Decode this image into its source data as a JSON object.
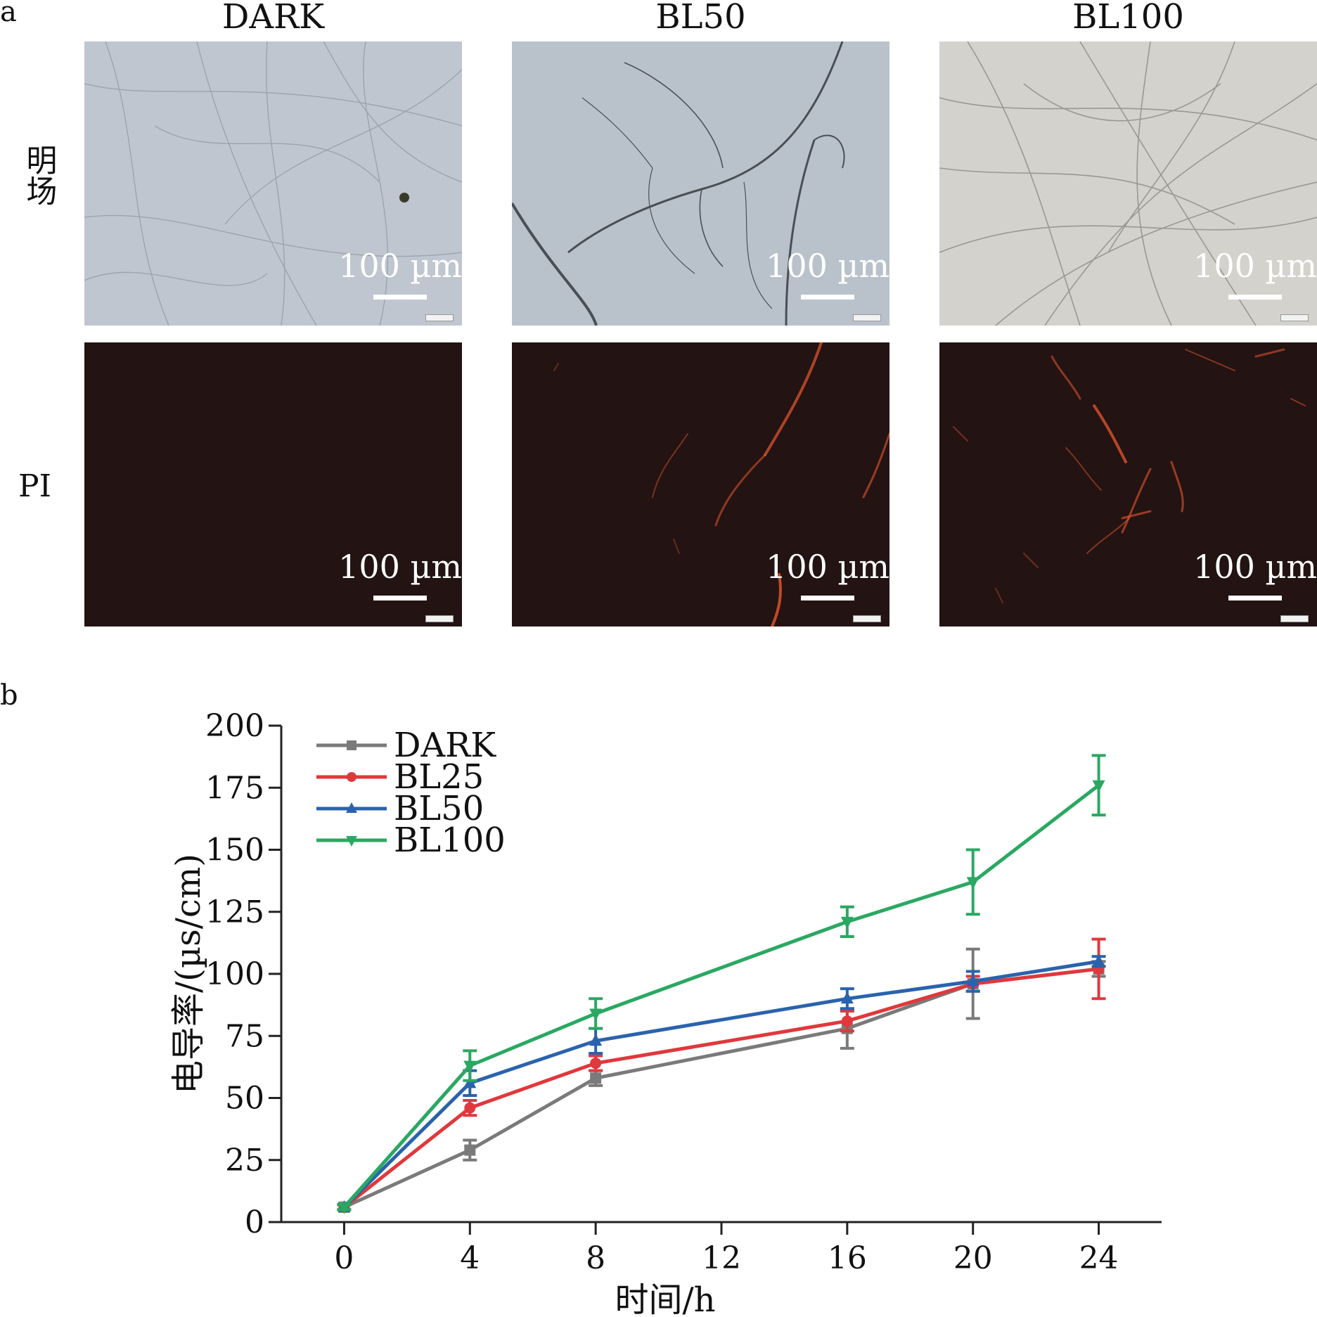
{
  "panel_a": {
    "letter": "a",
    "columns": [
      "DARK",
      "BL50",
      "BL100"
    ],
    "rows": [
      {
        "label": "明场",
        "scale_label": "100 µm"
      },
      {
        "label": "PI",
        "scale_label": "100 µm"
      }
    ]
  },
  "panel_b": {
    "letter": "b"
  },
  "colors": {
    "DARK": "#7a7a7a",
    "BL25": "#e0383c",
    "BL50": "#2a63ad",
    "BL100": "#2aa862",
    "pi_fluorescence": "#e8582c"
  },
  "chart_data": {
    "type": "line",
    "xlabel": "时间/h",
    "ylabel": "电导率/(µs/cm)",
    "xlim": [
      -2,
      26
    ],
    "ylim": [
      0,
      200
    ],
    "xticks": [
      0,
      4,
      8,
      12,
      16,
      20,
      24
    ],
    "yticks": [
      0,
      25,
      50,
      75,
      100,
      125,
      150,
      175,
      200
    ],
    "legend_position": "top-left",
    "x": [
      0,
      4,
      8,
      16,
      20,
      24
    ],
    "series": [
      {
        "name": "DARK",
        "marker": "square",
        "values": [
          6,
          29,
          58,
          78,
          96,
          102
        ],
        "errors": [
          1,
          4,
          3,
          8,
          14,
          3
        ]
      },
      {
        "name": "BL25",
        "marker": "circle",
        "values": [
          6,
          46,
          64,
          81,
          96,
          102
        ],
        "errors": [
          1,
          3,
          3,
          4,
          3,
          12
        ]
      },
      {
        "name": "BL50",
        "marker": "triangle-up",
        "values": [
          6,
          56,
          73,
          90,
          97,
          105
        ],
        "errors": [
          1,
          5,
          5,
          4,
          4,
          2
        ]
      },
      {
        "name": "BL100",
        "marker": "triangle-down",
        "values": [
          6,
          63,
          84,
          121,
          137,
          176
        ],
        "errors": [
          1,
          6,
          6,
          6,
          13,
          12
        ]
      }
    ]
  }
}
